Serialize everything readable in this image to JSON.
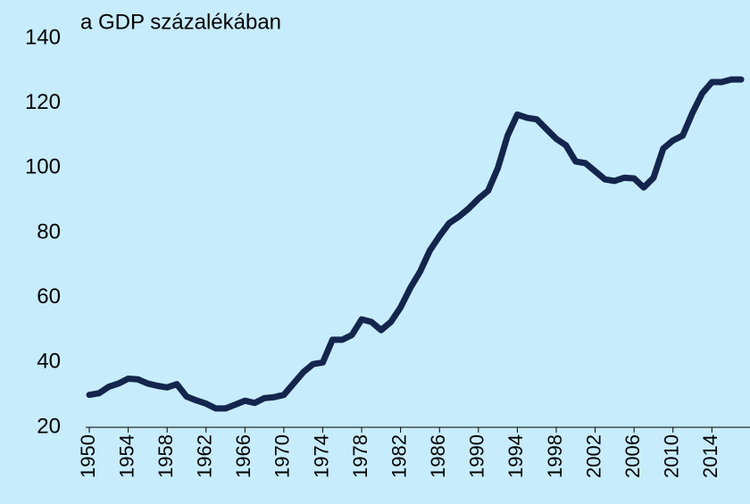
{
  "chart_data": {
    "type": "line",
    "title": "a GDP százalékában",
    "x": [
      1950,
      1951,
      1952,
      1953,
      1954,
      1955,
      1956,
      1957,
      1958,
      1959,
      1960,
      1961,
      1962,
      1963,
      1964,
      1965,
      1966,
      1967,
      1968,
      1969,
      1970,
      1971,
      1972,
      1973,
      1974,
      1975,
      1976,
      1977,
      1978,
      1979,
      1980,
      1981,
      1982,
      1983,
      1984,
      1985,
      1986,
      1987,
      1988,
      1989,
      1990,
      1991,
      1992,
      1993,
      1994,
      1995,
      1996,
      1997,
      1998,
      1999,
      2000,
      2001,
      2002,
      2003,
      2004,
      2005,
      2006,
      2007,
      2008,
      2009,
      2010,
      2011,
      2012,
      2013,
      2014,
      2015,
      2016,
      2017
    ],
    "series": [
      {
        "color": "#14254d",
        "values": [
          30,
          30.5,
          32.5,
          33.5,
          35,
          34.8,
          33.5,
          32.8,
          32.3,
          33.3,
          29.5,
          28.3,
          27.3,
          25.8,
          25.8,
          27,
          28.2,
          27.5,
          29,
          29.3,
          30,
          33.5,
          37,
          39.5,
          40,
          47,
          47,
          48.5,
          53.3,
          52.5,
          50,
          52.5,
          57,
          63,
          68,
          74.5,
          79,
          83,
          85,
          87.5,
          90.5,
          93,
          100,
          110,
          116.5,
          115.5,
          115,
          112,
          109,
          107,
          102,
          101.5,
          99,
          96.5,
          96,
          97,
          96.8,
          94,
          97,
          106,
          108.5,
          110,
          117,
          123,
          126.5,
          126.5,
          127.3,
          127.3
        ]
      }
    ],
    "xlim": [
      1950,
      2017
    ],
    "xticks": [
      1950,
      1954,
      1958,
      1962,
      1966,
      1970,
      1974,
      1978,
      1982,
      1986,
      1990,
      1994,
      1998,
      2002,
      2006,
      2010,
      2014
    ],
    "ylim": [
      20,
      140
    ],
    "yticks": [
      20,
      40,
      60,
      80,
      100,
      120,
      140
    ]
  }
}
